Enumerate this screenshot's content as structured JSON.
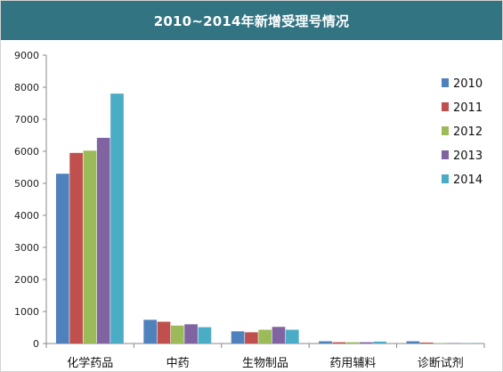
{
  "title": "2010~2014年新增受理号情况",
  "colors": {
    "title_bar": "#337482",
    "axis": "#888888"
  },
  "chart_data": {
    "type": "bar",
    "title": "2010~2014年新增受理号情况",
    "xlabel": "",
    "ylabel": "",
    "ylim": [
      0,
      9000
    ],
    "yticks": [
      "0",
      "1000",
      "2000",
      "3000",
      "4000",
      "5000",
      "6000",
      "7000",
      "8000",
      "9000"
    ],
    "grid": false,
    "legend_position": "right",
    "categories": [
      "化学药品",
      "中药",
      "生物制品",
      "药用辅料",
      "诊断试剂"
    ],
    "series": [
      {
        "name": "2010",
        "color": "#4f81bd",
        "values": [
          5300,
          740,
          380,
          70,
          70
        ]
      },
      {
        "name": "2011",
        "color": "#c0504d",
        "values": [
          5950,
          680,
          350,
          40,
          30
        ]
      },
      {
        "name": "2012",
        "color": "#9bbb59",
        "values": [
          6020,
          560,
          430,
          40,
          10
        ]
      },
      {
        "name": "2013",
        "color": "#8064a2",
        "values": [
          6420,
          600,
          520,
          40,
          10
        ]
      },
      {
        "name": "2014",
        "color": "#4bacc6",
        "values": [
          7800,
          510,
          430,
          60,
          10
        ]
      }
    ]
  }
}
